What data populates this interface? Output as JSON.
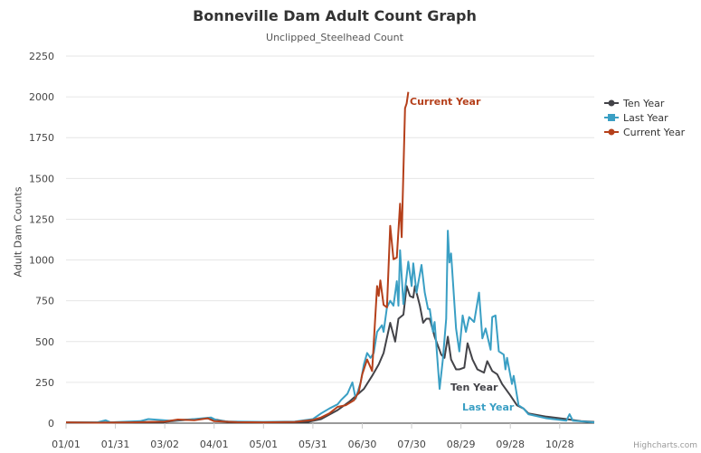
{
  "chart_data": {
    "type": "line",
    "title": "Bonneville Dam Adult Count Graph",
    "subtitle": "Unclipped_Steelhead Count",
    "ylabel": "Adult Dam Counts",
    "xlabel": "",
    "ylim": [
      0,
      2250
    ],
    "yticks": [
      0,
      250,
      500,
      750,
      1000,
      1250,
      1500,
      1750,
      2000,
      2250
    ],
    "xticks": [
      "01/01",
      "01/31",
      "03/02",
      "04/01",
      "05/01",
      "05/31",
      "06/30",
      "07/30",
      "08/29",
      "09/28",
      "10/28"
    ],
    "xlim": [
      "01/01",
      "11/18"
    ],
    "grid": true,
    "legend_position": "right",
    "credits": "Highcharts.com",
    "series": [
      {
        "name": "Ten Year",
        "color": "#434348",
        "marker": "circle",
        "annotation": "Ten Year",
        "points": [
          [
            "01/01",
            5
          ],
          [
            "02/01",
            4
          ],
          [
            "03/01",
            8
          ],
          [
            "03/15",
            20
          ],
          [
            "03/28",
            30
          ],
          [
            "04/10",
            8
          ],
          [
            "05/01",
            5
          ],
          [
            "05/28",
            8
          ],
          [
            "06/05",
            25
          ],
          [
            "06/15",
            80
          ],
          [
            "06/22",
            130
          ],
          [
            "07/01",
            210
          ],
          [
            "07/06",
            290
          ],
          [
            "07/10",
            360
          ],
          [
            "07/13",
            430
          ],
          [
            "07/17",
            615
          ],
          [
            "07/20",
            500
          ],
          [
            "07/22",
            640
          ],
          [
            "07/25",
            665
          ],
          [
            "07/27",
            840
          ],
          [
            "07/29",
            780
          ],
          [
            "07/31",
            770
          ],
          [
            "08/01",
            840
          ],
          [
            "08/04",
            720
          ],
          [
            "08/06",
            615
          ],
          [
            "08/08",
            640
          ],
          [
            "08/10",
            640
          ],
          [
            "08/13",
            530
          ],
          [
            "08/17",
            420
          ],
          [
            "08/19",
            400
          ],
          [
            "08/21",
            530
          ],
          [
            "08/23",
            390
          ],
          [
            "08/26",
            330
          ],
          [
            "08/28",
            330
          ],
          [
            "08/31",
            340
          ],
          [
            "09/02",
            490
          ],
          [
            "09/05",
            390
          ],
          [
            "09/08",
            330
          ],
          [
            "09/12",
            310
          ],
          [
            "09/14",
            380
          ],
          [
            "09/17",
            320
          ],
          [
            "09/20",
            300
          ],
          [
            "09/23",
            240
          ],
          [
            "09/28",
            170
          ],
          [
            "10/02",
            110
          ],
          [
            "10/06",
            90
          ],
          [
            "10/09",
            60
          ],
          [
            "10/20",
            40
          ],
          [
            "11/01",
            25
          ],
          [
            "11/10",
            12
          ],
          [
            "11/18",
            8
          ]
        ]
      },
      {
        "name": "Last Year",
        "color": "#3a9fc4",
        "marker": "square",
        "annotation": "Last Year",
        "points": [
          [
            "01/01",
            5
          ],
          [
            "01/20",
            5
          ],
          [
            "01/25",
            18
          ],
          [
            "01/28",
            5
          ],
          [
            "02/15",
            12
          ],
          [
            "02/20",
            25
          ],
          [
            "03/05",
            15
          ],
          [
            "03/20",
            25
          ],
          [
            "03/30",
            35
          ],
          [
            "04/03",
            15
          ],
          [
            "04/10",
            10
          ],
          [
            "05/01",
            8
          ],
          [
            "05/20",
            10
          ],
          [
            "05/31",
            25
          ],
          [
            "06/05",
            60
          ],
          [
            "06/10",
            90
          ],
          [
            "06/15",
            115
          ],
          [
            "06/17",
            140
          ],
          [
            "06/21",
            180
          ],
          [
            "06/24",
            250
          ],
          [
            "06/26",
            150
          ],
          [
            "06/29",
            250
          ],
          [
            "07/01",
            360
          ],
          [
            "07/03",
            430
          ],
          [
            "07/05",
            400
          ],
          [
            "07/07",
            430
          ],
          [
            "07/09",
            560
          ],
          [
            "07/12",
            600
          ],
          [
            "07/13",
            560
          ],
          [
            "07/15",
            710
          ],
          [
            "07/17",
            750
          ],
          [
            "07/19",
            720
          ],
          [
            "07/21",
            870
          ],
          [
            "07/22",
            720
          ],
          [
            "07/23",
            1060
          ],
          [
            "07/25",
            730
          ],
          [
            "07/28",
            990
          ],
          [
            "07/30",
            840
          ],
          [
            "07/31",
            980
          ],
          [
            "08/02",
            800
          ],
          [
            "08/05",
            970
          ],
          [
            "08/07",
            800
          ],
          [
            "08/09",
            700
          ],
          [
            "08/10",
            700
          ],
          [
            "08/12",
            560
          ],
          [
            "08/13",
            620
          ],
          [
            "08/16",
            210
          ],
          [
            "08/18",
            390
          ],
          [
            "08/20",
            640
          ],
          [
            "08/21",
            1180
          ],
          [
            "08/22",
            985
          ],
          [
            "08/23",
            1040
          ],
          [
            "08/26",
            580
          ],
          [
            "08/28",
            440
          ],
          [
            "08/30",
            660
          ],
          [
            "09/01",
            560
          ],
          [
            "09/03",
            650
          ],
          [
            "09/06",
            620
          ],
          [
            "09/09",
            800
          ],
          [
            "09/11",
            520
          ],
          [
            "09/13",
            580
          ],
          [
            "09/16",
            450
          ],
          [
            "09/17",
            650
          ],
          [
            "09/19",
            660
          ],
          [
            "09/21",
            440
          ],
          [
            "09/24",
            420
          ],
          [
            "09/25",
            330
          ],
          [
            "09/26",
            400
          ],
          [
            "09/29",
            240
          ],
          [
            "09/30",
            290
          ],
          [
            "10/03",
            110
          ],
          [
            "10/06",
            90
          ],
          [
            "10/09",
            55
          ],
          [
            "10/20",
            30
          ],
          [
            "11/01",
            15
          ],
          [
            "11/03",
            55
          ],
          [
            "11/05",
            15
          ],
          [
            "11/18",
            5
          ]
        ]
      },
      {
        "name": "Current Year",
        "color": "#b5401b",
        "marker": "circle",
        "annotation": "Current Year",
        "points": [
          [
            "01/01",
            5
          ],
          [
            "01/20",
            3
          ],
          [
            "02/10",
            5
          ],
          [
            "03/02",
            10
          ],
          [
            "03/10",
            22
          ],
          [
            "03/20",
            18
          ],
          [
            "03/28",
            30
          ],
          [
            "04/01",
            12
          ],
          [
            "04/15",
            6
          ],
          [
            "05/01",
            5
          ],
          [
            "05/20",
            8
          ],
          [
            "05/31",
            20
          ],
          [
            "06/05",
            35
          ],
          [
            "06/10",
            60
          ],
          [
            "06/15",
            100
          ],
          [
            "06/20",
            110
          ],
          [
            "06/25",
            140
          ],
          [
            "06/28",
            195
          ],
          [
            "06/30",
            300
          ],
          [
            "07/03",
            390
          ],
          [
            "07/06",
            320
          ],
          [
            "07/09",
            840
          ],
          [
            "07/10",
            780
          ],
          [
            "07/11",
            875
          ],
          [
            "07/13",
            725
          ],
          [
            "07/15",
            710
          ],
          [
            "07/17",
            1210
          ],
          [
            "07/19",
            1005
          ],
          [
            "07/21",
            1015
          ],
          [
            "07/23",
            1345
          ],
          [
            "07/24",
            1140
          ],
          [
            "07/26",
            1930
          ],
          [
            "07/27",
            1960
          ],
          [
            "07/28",
            2030
          ]
        ]
      }
    ]
  }
}
